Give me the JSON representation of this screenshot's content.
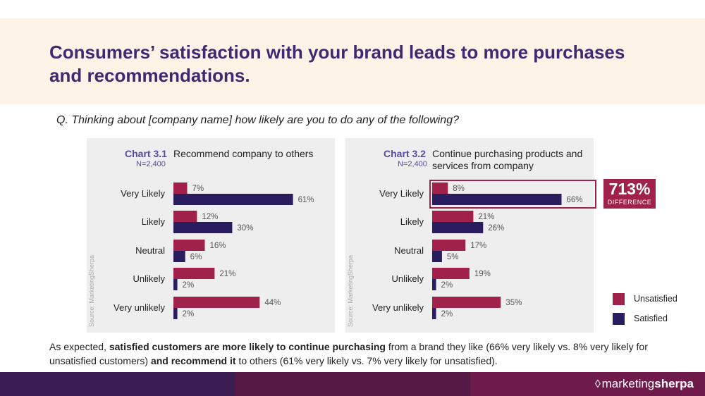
{
  "title": "Consumers’ satisfaction with your brand leads to more purchases and recommendations.",
  "question": "Q. Thinking about [company name] how likely are you to do any of the following?",
  "source_text": "Source: MarketingSherpa",
  "colors": {
    "unsatisfied": "#a0214a",
    "satisfied": "#2a1d5e",
    "accent": "#5a4a9e"
  },
  "highlight": {
    "value": "713%",
    "label": "DIFFERENCE"
  },
  "legend": [
    {
      "label": "Unsatisfied",
      "color": "#a0214a"
    },
    {
      "label": "Satisfied",
      "color": "#2a1d5e"
    }
  ],
  "summary": {
    "p1": "As expected, ",
    "b1": "satisfied customers are more likely to continue purchasing",
    "p2": " from a brand they like (66% very likely vs. 8% very likely for unsatisfied customers) ",
    "b2": "and recommend it",
    "p3": " to others (61% very likely vs. 7% very likely for unsatisfied)."
  },
  "footer": {
    "logo_light": "marketing",
    "logo_bold": "sherpa"
  },
  "chart_data": [
    {
      "type": "bar",
      "orientation": "horizontal",
      "label": "Chart 3.1",
      "n": "N=2,400",
      "title": "Recommend company to others",
      "categories": [
        "Very Likely",
        "Likely",
        "Neutral",
        "Unlikely",
        "Very unlikely"
      ],
      "series": [
        {
          "name": "Unsatisfied",
          "values": [
            7,
            12,
            16,
            21,
            44
          ],
          "labels": [
            "7%",
            "12%",
            "16%",
            "21%",
            "44%"
          ]
        },
        {
          "name": "Satisfied",
          "values": [
            61,
            30,
            6,
            2,
            2
          ],
          "labels": [
            "61%",
            "30%",
            "6%",
            "2%",
            "2%"
          ]
        }
      ],
      "xlim": [
        0,
        70
      ]
    },
    {
      "type": "bar",
      "orientation": "horizontal",
      "label": "Chart 3.2",
      "n": "N=2,400",
      "title": "Continue purchasing products and services from company",
      "categories": [
        "Very Likely",
        "Likely",
        "Neutral",
        "Unlikely",
        "Very unlikely"
      ],
      "series": [
        {
          "name": "Unsatisfied",
          "values": [
            8,
            21,
            17,
            19,
            35
          ],
          "labels": [
            "8%",
            "21%",
            "17%",
            "19%",
            "35%"
          ]
        },
        {
          "name": "Satisfied",
          "values": [
            66,
            26,
            5,
            2,
            2
          ],
          "labels": [
            "66%",
            "26%",
            "5%",
            "2%",
            "2%"
          ]
        }
      ],
      "xlim": [
        0,
        70
      ]
    }
  ]
}
